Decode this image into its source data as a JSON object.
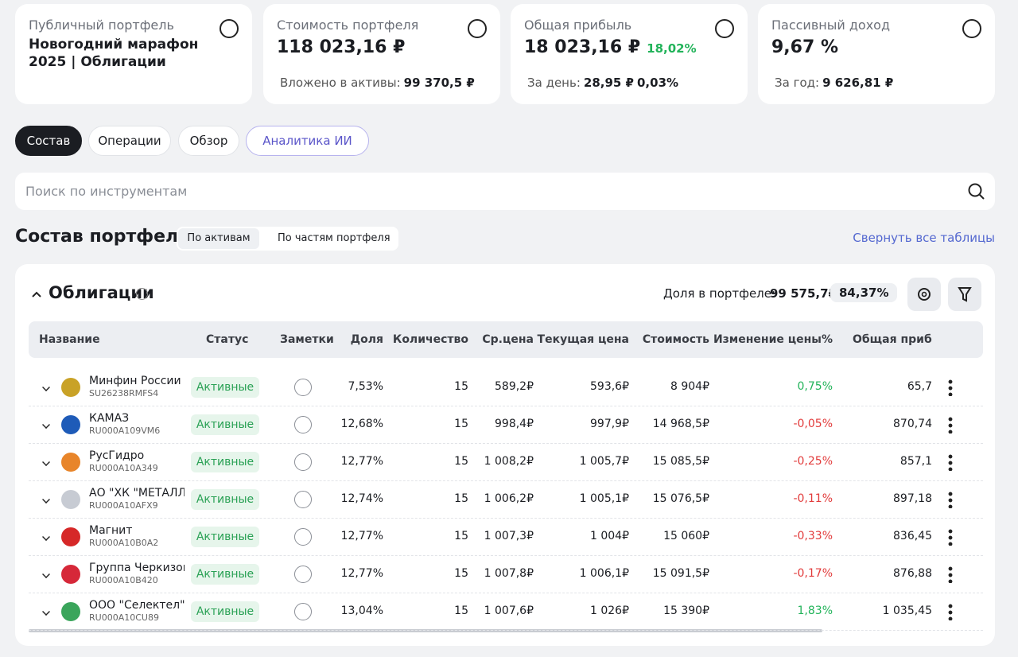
{
  "cards": [
    {
      "label": "Публичный портфель",
      "value": "Новогодний марафон 2025 | Облигации"
    },
    {
      "label": "Стоимость портфеля",
      "value": "118 023,16 ₽",
      "sub_label": "Вложено в активы:",
      "sub_value": "99 370,5 ₽"
    },
    {
      "label": "Общая прибыль",
      "value": "18 023,16 ₽",
      "change": "18,02%",
      "sub_label": "За день:",
      "sub_value": "28,95 ₽",
      "sub_change": "0,03%"
    },
    {
      "label": "Пассивный доход",
      "value": "9,67 %",
      "sub_label": "За год:",
      "sub_value": "9 626,81 ₽"
    }
  ],
  "tabs": [
    "Состав",
    "Операции",
    "Обзор",
    "Аналитика ИИ"
  ],
  "search_placeholder": "Поиск по инструментам",
  "section": {
    "title": "Состав портфеля",
    "toggles": [
      "По активам",
      "По частям портфеля"
    ],
    "collapse": "Свернуть все таблицы"
  },
  "table": {
    "title": "Облигации",
    "share_label": "Доля в портфеле:",
    "share_value": "99 575,7₽",
    "share_percent": "84,37%",
    "columns": [
      "Название",
      "Статус",
      "Заметки",
      "Доля",
      "Количество",
      "Ср.цена",
      "Текущая цена",
      "Стоимость",
      "Изменение цены%",
      "Общая прибыл"
    ],
    "rows": [
      [
        "Минфин России",
        "SU26238RMFS4",
        "Активные",
        "7,53%",
        "15",
        "589,2₽",
        "593,6₽",
        "8 904₽",
        "0,75%",
        "65,7"
      ],
      [
        "КАМАЗ",
        "RU000A109VM6",
        "Активные",
        "12,68%",
        "15",
        "998,4₽",
        "997,9₽",
        "14 968,5₽",
        "-0,05%",
        "870,74"
      ],
      [
        "РусГидро",
        "RU000A10A349",
        "Активные",
        "12,77%",
        "15",
        "1 008,2₽",
        "1 005,7₽",
        "15 085,5₽",
        "-0,25%",
        "857,1"
      ],
      [
        "АО \"ХК \"МЕТАЛЛ...",
        "RU000A10AFX9",
        "Активные",
        "12,74%",
        "15",
        "1 006,2₽",
        "1 005,1₽",
        "15 076,5₽",
        "-0,11%",
        "897,18"
      ],
      [
        "Магнит",
        "RU000A10B0A2",
        "Активные",
        "12,77%",
        "15",
        "1 007,3₽",
        "1 004₽",
        "15 060₽",
        "-0,33%",
        "836,45"
      ],
      [
        "Группа Черкизово",
        "RU000A10B420",
        "Активные",
        "12,77%",
        "15",
        "1 007,8₽",
        "1 006,1₽",
        "15 091,5₽",
        "-0,17%",
        "876,88"
      ],
      [
        "ООО \"Селектел\"",
        "RU000A10CU89",
        "Активные",
        "13,04%",
        "15",
        "1 007,6₽",
        "1 026₽",
        "15 390₽",
        "1,83%",
        "1 035,45"
      ]
    ]
  }
}
